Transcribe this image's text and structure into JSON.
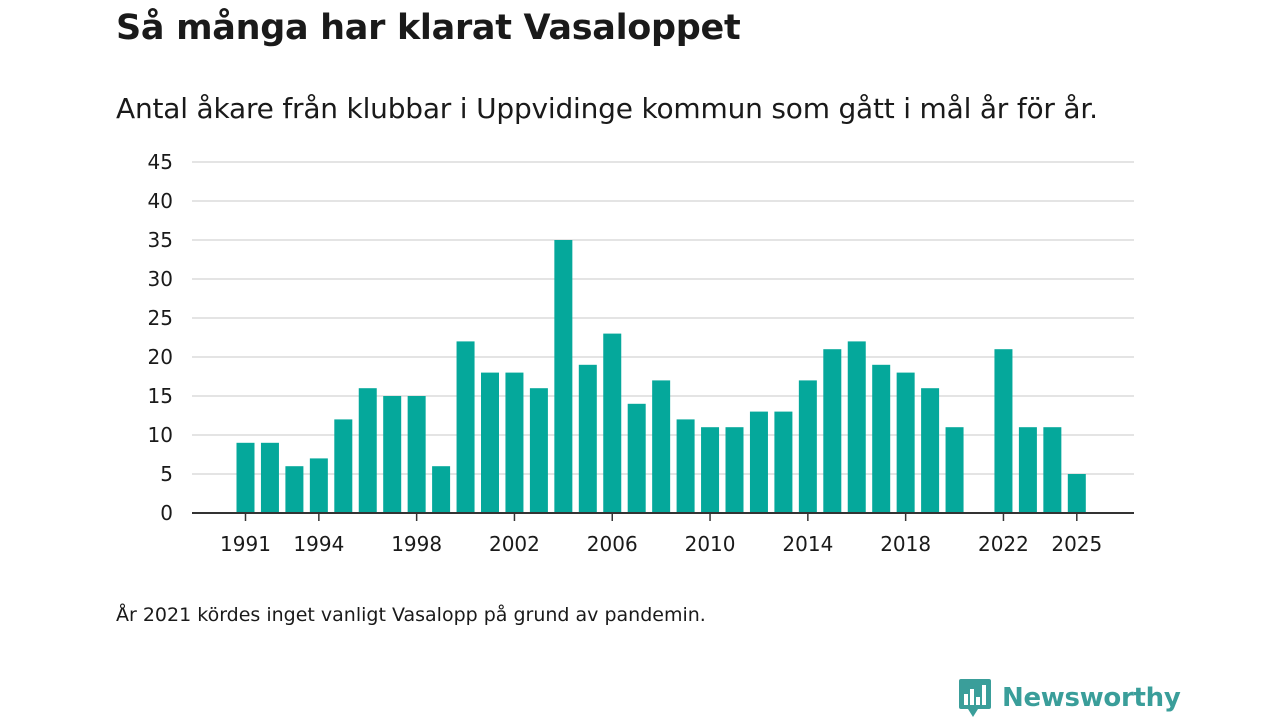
{
  "title": "Så många har klarat Vasaloppet",
  "subtitle": "Antal åkare från klubbar i Uppvidinge kommun som gått i mål år för år.",
  "note": "År 2021 kördes inget vanligt Vasalopp på grund av pandemin.",
  "brand": {
    "name": "Newsworthy",
    "icon": "newsworthy-logo-icon",
    "color": "#3a9e9a"
  },
  "chart_data": {
    "type": "bar",
    "title": "Så många har klarat Vasaloppet",
    "subtitle": "Antal åkare från klubbar i Uppvidinge kommun som gått i mål år för år.",
    "xlabel": "",
    "ylabel": "",
    "bar_color": "#05a89b",
    "grid": true,
    "ylim": [
      0,
      45
    ],
    "yticks": [
      0,
      5,
      10,
      15,
      20,
      25,
      30,
      35,
      40,
      45
    ],
    "xticks": [
      1991,
      1994,
      1998,
      2002,
      2006,
      2010,
      2014,
      2018,
      2022,
      2025
    ],
    "x": [
      1991,
      1992,
      1993,
      1994,
      1995,
      1996,
      1997,
      1998,
      1999,
      2000,
      2001,
      2002,
      2003,
      2004,
      2005,
      2006,
      2007,
      2008,
      2009,
      2010,
      2011,
      2012,
      2013,
      2014,
      2015,
      2016,
      2017,
      2018,
      2019,
      2020,
      2021,
      2022,
      2023,
      2024,
      2025
    ],
    "values": [
      9,
      9,
      6,
      7,
      12,
      16,
      15,
      15,
      6,
      22,
      18,
      18,
      16,
      35,
      19,
      23,
      14,
      17,
      12,
      11,
      11,
      13,
      13,
      17,
      21,
      22,
      19,
      18,
      16,
      11,
      0,
      21,
      11,
      11,
      5
    ]
  }
}
